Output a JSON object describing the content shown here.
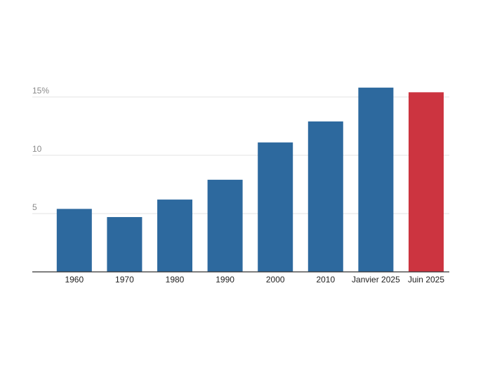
{
  "chart_data": {
    "type": "bar",
    "title": "",
    "xlabel": "",
    "ylabel": "",
    "categories": [
      "1960",
      "1970",
      "1980",
      "1990",
      "2000",
      "2010",
      "Janvier 2025",
      "Juin 2025"
    ],
    "values": [
      5.4,
      4.7,
      6.2,
      7.9,
      11.1,
      12.9,
      15.8,
      15.4
    ],
    "ylim": [
      0,
      15
    ],
    "yticks": [
      {
        "value": 5,
        "label": "5"
      },
      {
        "value": 10,
        "label": "10"
      },
      {
        "value": 15,
        "label": "15%"
      }
    ],
    "grid": true,
    "legend": "none",
    "colors": {
      "default": "#2d699e",
      "highlight": "#cc3440"
    },
    "highlight_index": 7
  }
}
